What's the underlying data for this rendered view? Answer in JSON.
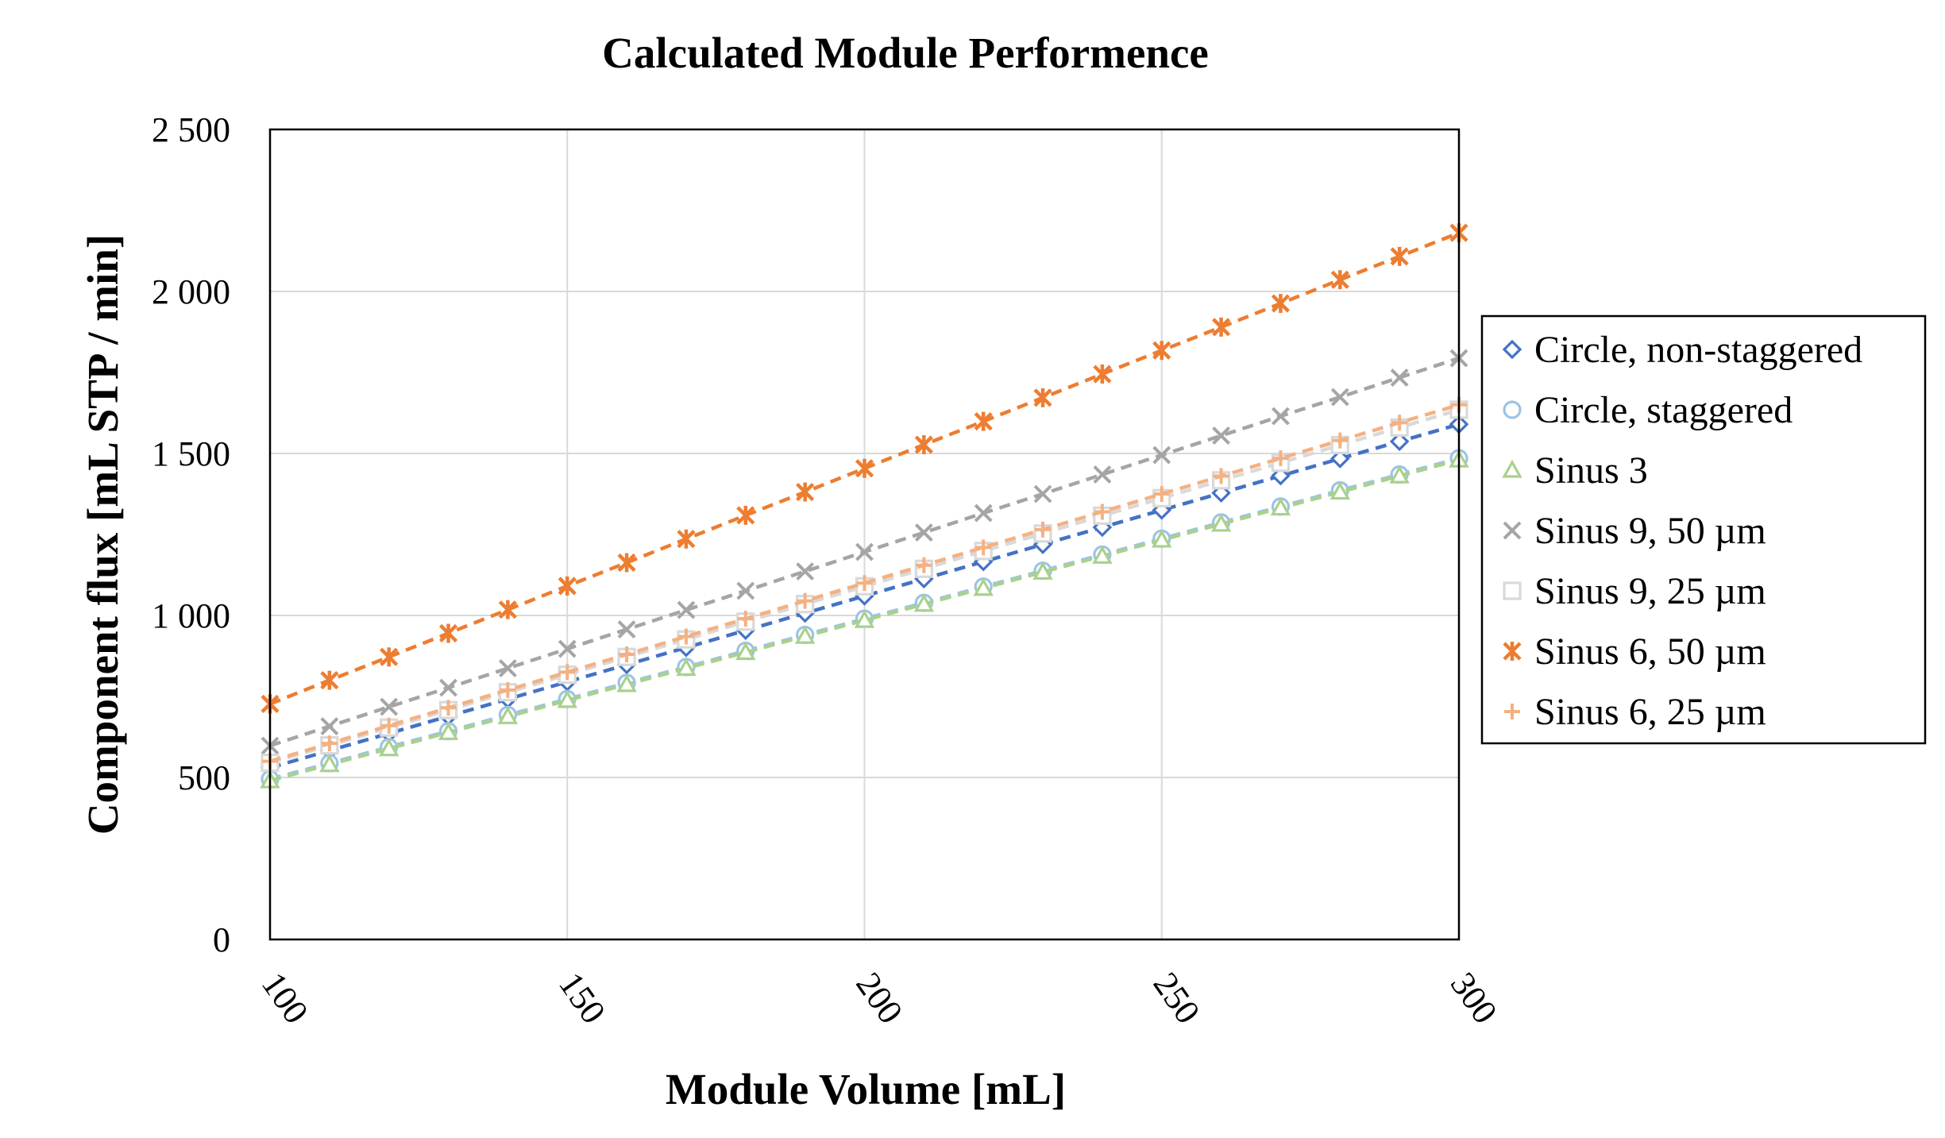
{
  "chart_data": {
    "type": "line",
    "title": "Calculated Module Performence",
    "xlabel": "Module Volume [mL]",
    "ylabel": "Component flux [mL STP / min]",
    "xlim": [
      100,
      300
    ],
    "ylim": [
      0,
      2500
    ],
    "grid": true,
    "legend_position": "right",
    "x_ticks": [
      "100",
      "150",
      "200",
      "250",
      "300"
    ],
    "y_ticks": [
      "0",
      "500",
      "1 000",
      "1 500",
      "2 000",
      "2 500"
    ],
    "x": [
      100,
      110,
      120,
      130,
      140,
      150,
      160,
      170,
      180,
      190,
      200,
      210,
      220,
      230,
      240,
      250,
      260,
      270,
      280,
      290,
      300
    ],
    "series": [
      {
        "name": "Circle, non-staggered",
        "color": "#4472C4",
        "marker": "diamond",
        "values": [
          530,
          583,
          636,
          689,
          742,
          795,
          848,
          901,
          954,
          1007,
          1060,
          1113,
          1166,
          1219,
          1272,
          1325,
          1378,
          1431,
          1484,
          1537,
          1590
        ]
      },
      {
        "name": "Circle, staggered",
        "color": "#9DC3E6",
        "marker": "circle",
        "values": [
          495,
          544,
          594,
          643,
          693,
          742,
          792,
          841,
          891,
          940,
          990,
          1039,
          1089,
          1138,
          1188,
          1237,
          1287,
          1336,
          1386,
          1435,
          1485
        ]
      },
      {
        "name": "Sinus 3",
        "color": "#A9D18E",
        "marker": "triangle",
        "values": [
          490,
          540,
          589,
          639,
          688,
          738,
          787,
          837,
          886,
          936,
          985,
          1035,
          1084,
          1134,
          1183,
          1233,
          1282,
          1332,
          1381,
          1431,
          1480
        ]
      },
      {
        "name": "Sinus 9, 50 µm",
        "color": "#A5A5A5",
        "marker": "x",
        "values": [
          598,
          658,
          718,
          777,
          837,
          897,
          957,
          1017,
          1076,
          1136,
          1196,
          1256,
          1316,
          1375,
          1435,
          1495,
          1555,
          1615,
          1674,
          1734,
          1794
        ]
      },
      {
        "name": "Sinus 9, 25 µm",
        "color": "#D9D9D9",
        "marker": "square",
        "values": [
          545,
          599,
          654,
          708,
          763,
          817,
          872,
          926,
          981,
          1035,
          1090,
          1144,
          1199,
          1253,
          1308,
          1362,
          1417,
          1471,
          1526,
          1580,
          1635
        ]
      },
      {
        "name": "Sinus 6, 50 µm",
        "color": "#ED7D31",
        "marker": "asterisk",
        "values": [
          727,
          800,
          872,
          945,
          1018,
          1091,
          1163,
          1236,
          1309,
          1381,
          1454,
          1527,
          1599,
          1672,
          1745,
          1818,
          1890,
          1963,
          2036,
          2108,
          2181
        ]
      },
      {
        "name": "Sinus 6, 25 µm",
        "color": "#F4B183",
        "marker": "plus",
        "values": [
          550,
          605,
          660,
          715,
          770,
          825,
          880,
          935,
          990,
          1045,
          1100,
          1155,
          1210,
          1265,
          1320,
          1375,
          1430,
          1485,
          1540,
          1595,
          1650
        ]
      }
    ]
  }
}
